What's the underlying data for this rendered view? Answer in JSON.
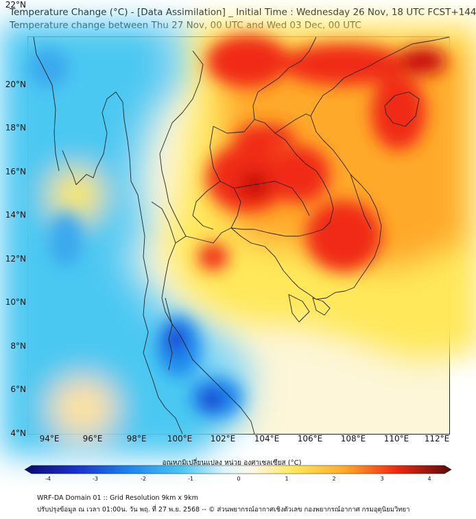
{
  "header": {
    "title_line1": "Temperature Change (°C) - [Data Assimilation] _ Initial Time : Wednesday 26 Nov, 18 UTC FCST+144",
    "title_line2": "Temperature change between Thu 27 Nov, 00 UTC and Wed 03 Dec, 00 UTC"
  },
  "map": {
    "lat_labels": [
      "22°N",
      "20°N",
      "18°N",
      "16°N",
      "14°N",
      "12°N",
      "10°N",
      "8°N",
      "6°N",
      "4°N"
    ],
    "lon_labels": [
      "94°E",
      "96°E",
      "98°E",
      "100°E",
      "102°E",
      "104°E",
      "106°E",
      "108°E",
      "110°E",
      "112°E"
    ]
  },
  "colorbar": {
    "title": "อุณหภูมิเปลี่ยนแปลง หน่วย องศาเซลเซียส (°C)",
    "ticks": [
      "-4",
      "-3",
      "-2",
      "-1",
      "0",
      "1",
      "2",
      "3",
      "4"
    ],
    "min": -4,
    "max": 4
  },
  "footer": {
    "line1": "WRF-DA Domain 01 :: Grid Resolution 9km x 9km",
    "line2": "ปรับปรุงข้อมูล ณ เวลา 01:00น. วัน พฤ. ที่ 27 พ.ย. 2568 -- © ส่วนพยากรณ์อากาศเชิงตัวเลข กองพยากรณ์อากาศ กรมอุตุนิยมวิทยา"
  },
  "colors": {
    "cold_strong": "#1b2fcc",
    "cold": "#1e88ee",
    "cool": "#4cc8f2",
    "neutral": "#fbf7ea",
    "warm": "#ffe85a",
    "warm_mid": "#ffa92a",
    "hot": "#f02a12",
    "hot_strong": "#c8100c",
    "coastline": "#222222"
  }
}
